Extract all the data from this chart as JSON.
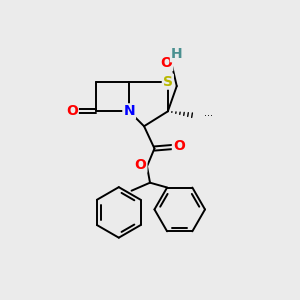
{
  "bg_color": "#ebebeb",
  "atom_colors": {
    "S": "#b8b800",
    "N": "#0000ff",
    "O": "#ff0000",
    "H": "#4a9090",
    "C": "#000000"
  },
  "bond_color": "#000000",
  "bond_lw": 1.4,
  "figsize": [
    3.0,
    3.0
  ],
  "dpi": 100
}
